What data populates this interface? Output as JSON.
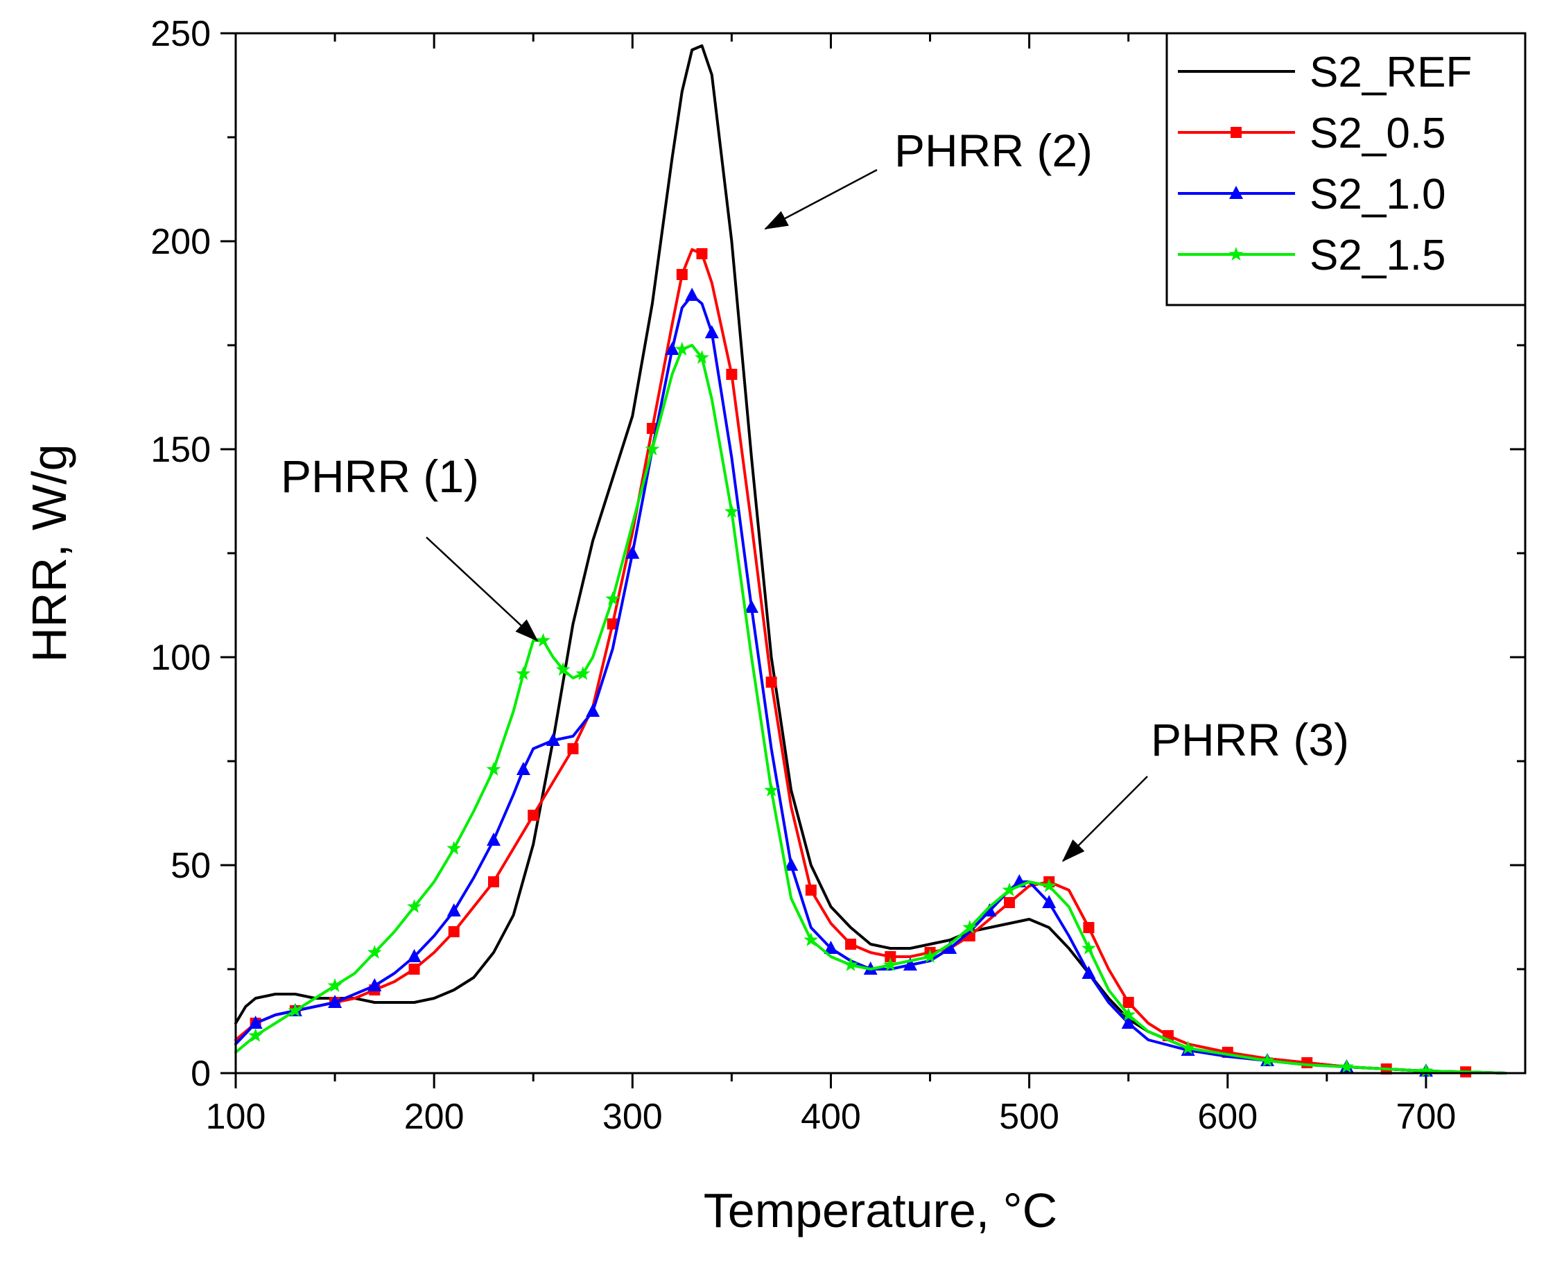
{
  "chart_data": {
    "type": "line",
    "title": "",
    "xlabel": "Temperature, °C",
    "ylabel": "HRR, W/g",
    "xlim": [
      100,
      750
    ],
    "ylim": [
      0,
      250
    ],
    "xticks": [
      100,
      200,
      300,
      400,
      500,
      600,
      700
    ],
    "yticks": [
      0,
      50,
      100,
      150,
      200,
      250
    ],
    "legend_position": "top-right",
    "series": [
      {
        "name": "S2_REF",
        "color": "#000000",
        "marker": "none",
        "x": [
          100,
          105,
          110,
          120,
          130,
          140,
          150,
          160,
          170,
          180,
          190,
          200,
          210,
          220,
          230,
          240,
          250,
          260,
          270,
          280,
          290,
          300,
          310,
          320,
          325,
          330,
          335,
          340,
          350,
          360,
          370,
          380,
          390,
          400,
          410,
          420,
          430,
          440,
          450,
          460,
          470,
          480,
          490,
          500,
          510,
          520,
          530,
          540,
          550,
          560,
          570,
          580,
          590,
          600,
          620,
          640,
          660,
          680,
          700,
          720,
          740
        ],
        "y": [
          12,
          16,
          18,
          19,
          19,
          18,
          18,
          18,
          17,
          17,
          17,
          18,
          20,
          23,
          29,
          38,
          55,
          80,
          108,
          128,
          143,
          158,
          185,
          220,
          236,
          246,
          247,
          240,
          200,
          148,
          100,
          68,
          50,
          40,
          35,
          31,
          30,
          30,
          31,
          32,
          34,
          35,
          36,
          37,
          35,
          30,
          24,
          18,
          13,
          10,
          8,
          6,
          5,
          4.5,
          3.5,
          2.5,
          1.5,
          1,
          0.5,
          0.3,
          0
        ]
      },
      {
        "name": "S2_0.5",
        "color": "#ff0000",
        "marker": "square",
        "x": [
          100,
          110,
          120,
          130,
          140,
          150,
          160,
          170,
          180,
          190,
          200,
          210,
          220,
          230,
          240,
          250,
          260,
          270,
          280,
          290,
          300,
          310,
          320,
          325,
          330,
          335,
          340,
          350,
          360,
          370,
          380,
          390,
          400,
          410,
          420,
          430,
          440,
          450,
          460,
          470,
          480,
          490,
          500,
          510,
          520,
          530,
          540,
          550,
          560,
          570,
          580,
          600,
          620,
          640,
          660,
          680,
          700,
          720,
          740
        ],
        "y": [
          8,
          12,
          14,
          15,
          16,
          17,
          18,
          20,
          22,
          25,
          29,
          34,
          40,
          46,
          54,
          62,
          70,
          78,
          88,
          108,
          130,
          155,
          180,
          192,
          198,
          197,
          190,
          168,
          132,
          94,
          64,
          44,
          36,
          31,
          29,
          28,
          28,
          29,
          30,
          33,
          37,
          41,
          45,
          46,
          44,
          35,
          25,
          17,
          12,
          9,
          7,
          5,
          3.5,
          2.5,
          1.5,
          1,
          0.5,
          0.3,
          0
        ]
      },
      {
        "name": "S2_1.0",
        "color": "#0000ff",
        "marker": "triangle",
        "x": [
          100,
          110,
          120,
          130,
          140,
          150,
          160,
          170,
          180,
          190,
          200,
          210,
          220,
          230,
          240,
          245,
          250,
          260,
          270,
          280,
          290,
          300,
          310,
          320,
          325,
          330,
          335,
          340,
          350,
          360,
          370,
          380,
          390,
          400,
          410,
          420,
          430,
          440,
          450,
          460,
          470,
          480,
          490,
          495,
          500,
          510,
          520,
          530,
          540,
          550,
          560,
          580,
          600,
          620,
          640,
          660,
          680,
          700,
          720,
          740
        ],
        "y": [
          7,
          12,
          14,
          15,
          16,
          17,
          19,
          21,
          24,
          28,
          33,
          39,
          47,
          56,
          67,
          73,
          78,
          80,
          81,
          87,
          102,
          125,
          150,
          174,
          184,
          187,
          185,
          178,
          148,
          112,
          78,
          50,
          35,
          30,
          27,
          25,
          25,
          26,
          27,
          30,
          34,
          39,
          44,
          46,
          46,
          41,
          33,
          24,
          17,
          12,
          8,
          5.5,
          4,
          3,
          2,
          1.5,
          1,
          0.5,
          0.3,
          0
        ]
      },
      {
        "name": "S2_1.5",
        "color": "#00ee00",
        "marker": "star",
        "x": [
          100,
          110,
          120,
          130,
          140,
          150,
          160,
          170,
          180,
          190,
          200,
          210,
          220,
          230,
          240,
          245,
          250,
          255,
          260,
          265,
          270,
          275,
          280,
          290,
          300,
          310,
          320,
          325,
          330,
          335,
          340,
          350,
          360,
          370,
          380,
          390,
          400,
          410,
          420,
          430,
          440,
          450,
          460,
          470,
          480,
          490,
          500,
          510,
          520,
          530,
          540,
          550,
          560,
          580,
          600,
          620,
          640,
          660,
          680,
          700,
          720,
          740
        ],
        "y": [
          5,
          9,
          12,
          15,
          18,
          21,
          24,
          29,
          34,
          40,
          46,
          54,
          63,
          73,
          87,
          96,
          104,
          104,
          100,
          97,
          95,
          96,
          100,
          114,
          132,
          150,
          168,
          174,
          175,
          172,
          162,
          135,
          100,
          68,
          42,
          32,
          28,
          26,
          25,
          26,
          27,
          28,
          31,
          35,
          40,
          44,
          46,
          45,
          40,
          30,
          20,
          14,
          10,
          6,
          4.5,
          3,
          2,
          1.5,
          1,
          0.5,
          0.3,
          0
        ]
      }
    ],
    "annotations": [
      {
        "text": "PHRR (1)",
        "target": [
          252,
          104
        ]
      },
      {
        "text": "PHRR (2)",
        "target": [
          367,
          203
        ]
      },
      {
        "text": "PHRR (3)",
        "target": [
          517,
          51
        ]
      }
    ]
  }
}
